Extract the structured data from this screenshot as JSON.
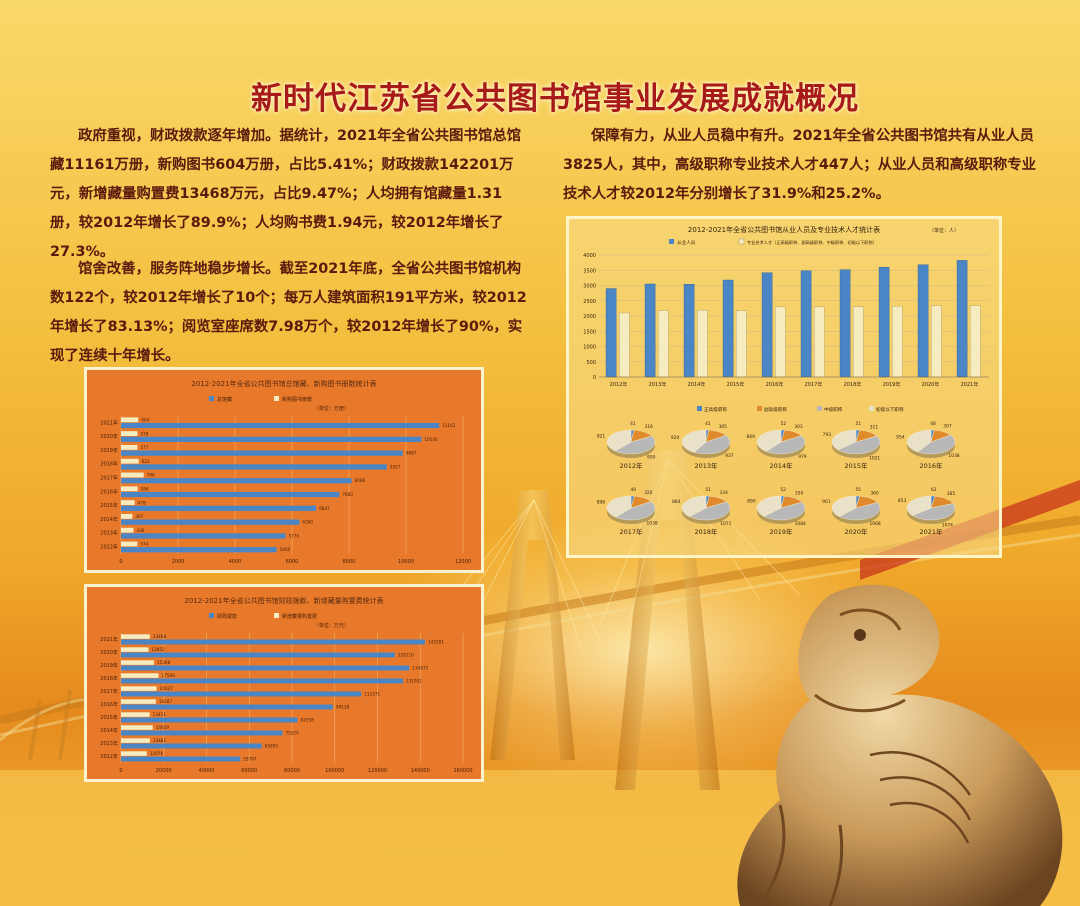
{
  "title": "新时代江苏省公共图书馆事业发展成就概况",
  "paragraphs": {
    "p1": "政府重视，财政拨款逐年增加。据统计，2021年全省公共图书馆总馆藏11161万册，新购图书604万册，占比5.41%；财政拨款142201万元，新增藏量购置费13468万元，占比9.47%；人均拥有馆藏量1.31册，较2012年增长了89.9%；人均购书费1.94元，较2012年增长了27.3%。",
    "p2": "馆舍改善，服务阵地稳步增长。截至2021年底，全省公共图书馆机构数122个，较2012年增长了10个；每万人建筑面积191平方米，较2012年增长了83.13%；阅览室座席数7.98万个，较2012年增长了90%，实现了连续十年增长。",
    "p3": "保障有力，从业人员稳中有升。2021年全省公共图书馆共有从业人员3825人，其中，高级职称专业技术人才447人；从业人员和高级职称专业技术人才较2012年分别增长了31.9%和25.2%。"
  },
  "colors": {
    "title": "#a8191a",
    "text": "#5a1a0e",
    "chart_bg": "#e8792a",
    "series_blue": "#4a86c5",
    "series_cream": "#f6ecc0",
    "pie_gray": "#b8b8b8",
    "pie_orange": "#e08a2c",
    "pie_blue": "#4a86c5"
  },
  "chart_data": [
    {
      "type": "bar",
      "orientation": "horizontal",
      "title": "2012-2021年全省公共图书馆总馆藏、新购图书册数统计表",
      "unit_note": "（单位：万册）",
      "categories": [
        "2021年",
        "2020年",
        "2019年",
        "2018年",
        "2017年",
        "2016年",
        "2015年",
        "2014年",
        "2013年",
        "2012年"
      ],
      "series": [
        {
          "name": "总馆藏",
          "values": [
            11161,
            10540,
            9887,
            9327,
            8088,
            7660,
            6847,
            6260,
            5770,
            5460
          ]
        },
        {
          "name": "新购图书册数",
          "values": [
            604,
            578,
            577,
            622,
            796,
            584,
            478,
            397,
            438,
            574
          ]
        }
      ],
      "xticks": [
        "0",
        "2000",
        "4000",
        "6000",
        "8000",
        "10000",
        "12000"
      ],
      "xlim": [
        0,
        12000
      ]
    },
    {
      "type": "bar",
      "orientation": "horizontal",
      "title": "2012-2021年全省公共图书馆财政拨款、新增藏量购置费统计表",
      "unit_note": "（单位：万元）",
      "categories": [
        "2021年",
        "2020年",
        "2019年",
        "2018年",
        "2017年",
        "2016年",
        "2015年",
        "2014年",
        "2013年",
        "2012年"
      ],
      "series": [
        {
          "name": "财政拨款",
          "values": [
            142201,
            128116,
            134872,
            131951,
            112371,
            99138,
            82558,
            75529,
            65805,
            55797
          ]
        },
        {
          "name": "新增藏量购置费",
          "values": [
            13468,
            12852,
            15398,
            17566,
            16627,
            16287,
            13421,
            14859,
            13481,
            12076
          ]
        }
      ],
      "xticks": [
        "0",
        "20000",
        "40000",
        "60000",
        "80000",
        "100000",
        "120000",
        "140000",
        "160000"
      ],
      "xlim": [
        0,
        160000
      ]
    },
    {
      "type": "bar",
      "title": "2012-2021年全省公共图书馆从业人员及专业技术人才统计表",
      "unit_note": "（单位：人）",
      "categories": [
        "2012年",
        "2013年",
        "2014年",
        "2015年",
        "2016年",
        "2017年",
        "2018年",
        "2019年",
        "2020年",
        "2021年"
      ],
      "series": [
        {
          "name": "从业人员",
          "values": [
            2900,
            3050,
            3040,
            3180,
            3420,
            3480,
            3520,
            3600,
            3680,
            3825
          ]
        },
        {
          "name": "专业技术人才（正高级职称、副高级职称、中级职称、初级以下职称）",
          "values": [
            2100,
            2180,
            2190,
            2170,
            2300,
            2300,
            2300,
            2320,
            2340,
            2340
          ]
        }
      ],
      "yticks": [
        "0",
        "500",
        "1000",
        "1500",
        "2000",
        "2500",
        "3000",
        "3500",
        "4000"
      ],
      "ylim": [
        0,
        4000
      ]
    },
    {
      "type": "pie",
      "legend": [
        "正高级职称",
        "副高级职称",
        "中级职称",
        "初级以下职称"
      ],
      "pies": [
        {
          "year": "2012年",
          "values": [
            41,
            316,
            950,
            821
          ]
        },
        {
          "year": "2013年",
          "values": [
            41,
            305,
            937,
            920
          ]
        },
        {
          "year": "2014年",
          "values": [
            52,
            303,
            979,
            869
          ]
        },
        {
          "year": "2015年",
          "values": [
            51,
            311,
            1021,
            793
          ]
        },
        {
          "year": "2016年",
          "values": [
            48,
            307,
            1038,
            954
          ]
        },
        {
          "year": "2017年",
          "values": [
            49,
            320,
            1038,
            898
          ]
        },
        {
          "year": "2018年",
          "values": [
            51,
            334,
            1071,
            884
          ]
        },
        {
          "year": "2019年",
          "values": [
            52,
            350,
            1084,
            890
          ]
        },
        {
          "year": "2020年",
          "values": [
            55,
            360,
            1068,
            901
          ]
        },
        {
          "year": "2021年",
          "values": [
            62,
            385,
            1074,
            853
          ]
        }
      ]
    }
  ]
}
